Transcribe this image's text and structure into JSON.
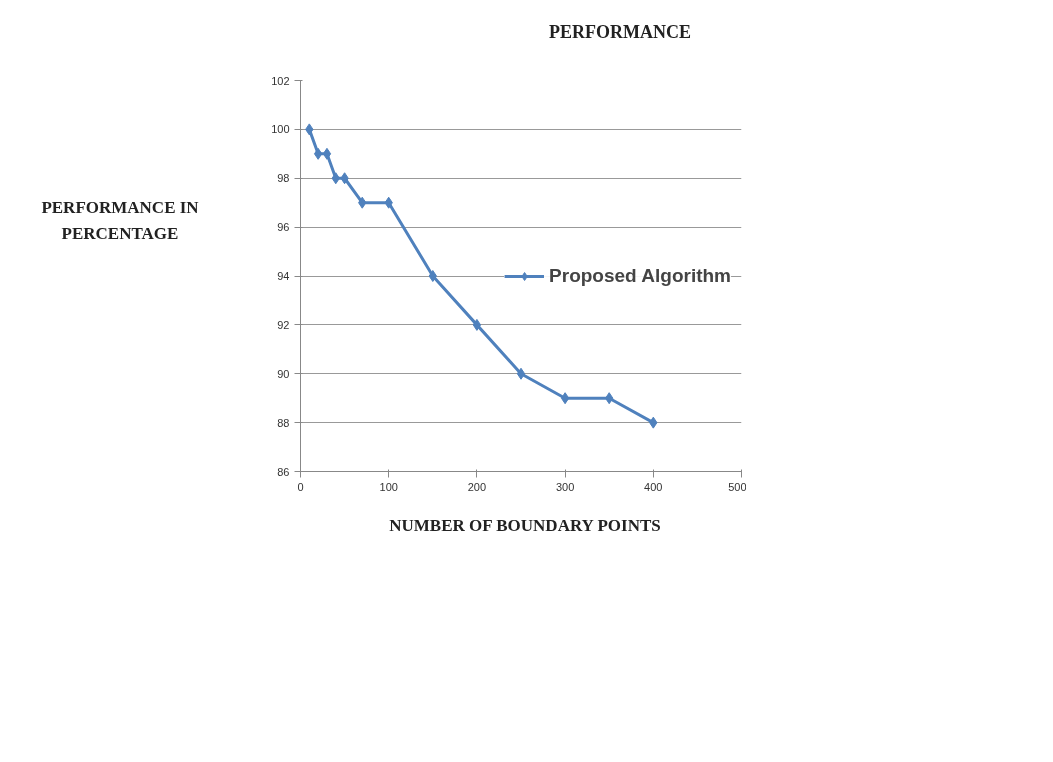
{
  "chart_data": {
    "type": "line",
    "title": "PERFORMANCE",
    "xlabel": "NUMBER OF BOUNDARY POINTS",
    "ylabel": "PERFORMANCE IN PERCENTAGE",
    "x": [
      10,
      20,
      30,
      40,
      50,
      70,
      100,
      150,
      200,
      250,
      300,
      350,
      400
    ],
    "series": [
      {
        "name": "Proposed Algorithm",
        "color": "#4f81bd",
        "values": [
          100,
          99,
          99,
          98,
          98,
          97,
          97,
          94,
          92,
          90,
          89,
          89,
          88
        ]
      }
    ],
    "xlim": [
      0,
      500
    ],
    "xticks": [
      0,
      100,
      200,
      300,
      400,
      500
    ],
    "ylim": [
      86,
      102
    ],
    "yticks": [
      86,
      88,
      90,
      92,
      94,
      96,
      98,
      100,
      102
    ],
    "grid": "y",
    "legend": "right",
    "marker": "diamond",
    "line_style": "solid"
  }
}
